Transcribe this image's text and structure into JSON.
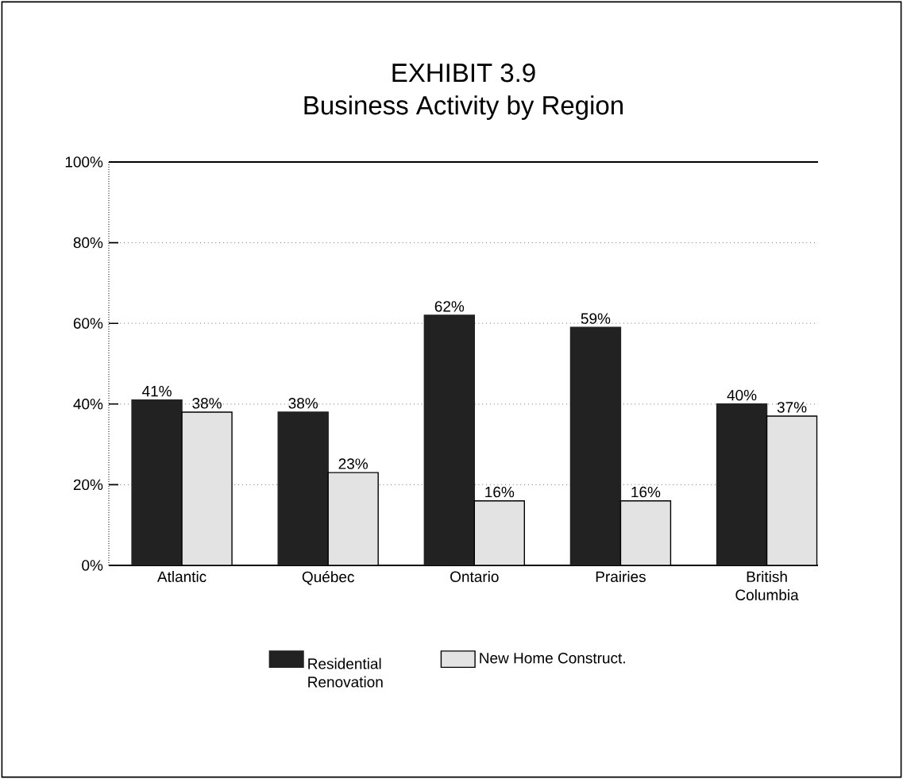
{
  "chart_data": {
    "type": "bar",
    "title": "EXHIBIT 3.9",
    "subtitle": "Business Activity by Region",
    "categories": [
      "Atlantic",
      "Québec",
      "Ontario",
      "Prairies",
      "British Columbia"
    ],
    "series": [
      {
        "name": "Residential Renovation",
        "color": "#222222",
        "values": [
          41,
          38,
          62,
          59,
          40
        ],
        "value_labels": [
          "41%",
          "38%",
          "62%",
          "59%",
          "40%"
        ]
      },
      {
        "name": "New Home Construct.",
        "color": "#e3e3e3",
        "values": [
          38,
          23,
          16,
          16,
          37
        ],
        "value_labels": [
          "38%",
          "23%",
          "16%",
          "16%",
          "37%"
        ]
      }
    ],
    "ylim": [
      0,
      100
    ],
    "yticks": [
      {
        "value": 0,
        "label": "0%"
      },
      {
        "value": 20,
        "label": "20%"
      },
      {
        "value": 40,
        "label": "40%"
      },
      {
        "value": 60,
        "label": "60%"
      },
      {
        "value": 80,
        "label": "80%"
      },
      {
        "value": 100,
        "label": "100%"
      }
    ],
    "grid": "y",
    "legend": "bottom"
  }
}
